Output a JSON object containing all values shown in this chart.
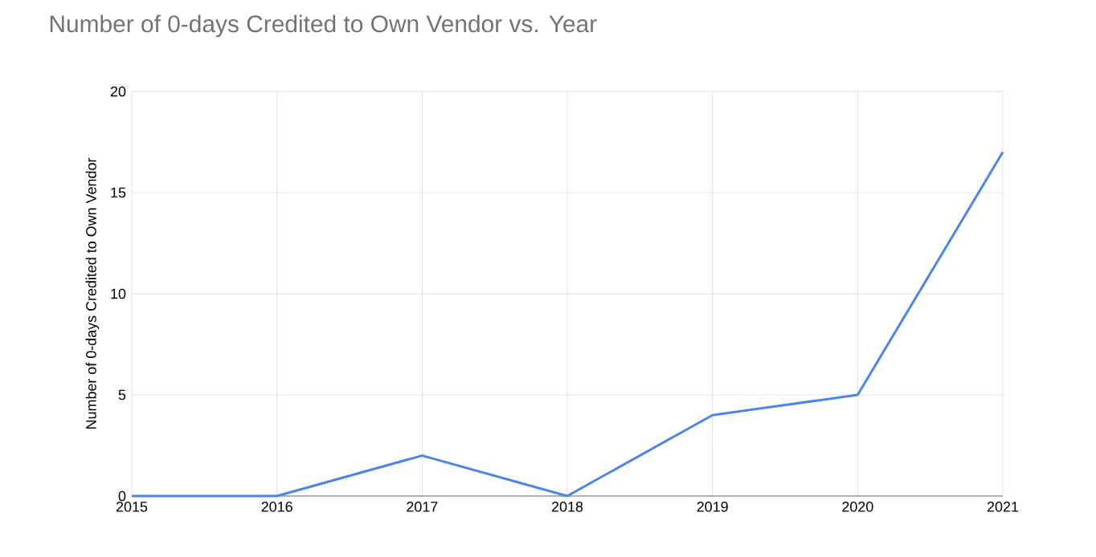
{
  "chart_data": {
    "type": "line",
    "title": "Number of 0-days Credited to Own Vendor vs. Year",
    "ylabel": "Number of 0-days Credited to Own Vendor",
    "x": [
      2015,
      2016,
      2017,
      2018,
      2019,
      2020,
      2021
    ],
    "series": [
      {
        "color": "#4a86e8",
        "values": [
          0,
          0,
          2,
          0,
          4,
          5,
          17
        ]
      }
    ],
    "xlim": [
      2015,
      2021
    ],
    "xticks": [
      2015,
      2016,
      2017,
      2018,
      2019,
      2020,
      2021
    ],
    "ylim": [
      0,
      20
    ],
    "yticks": [
      0,
      5,
      10,
      15,
      20
    ],
    "grid": true,
    "marker": "none",
    "line_style": "solid"
  }
}
